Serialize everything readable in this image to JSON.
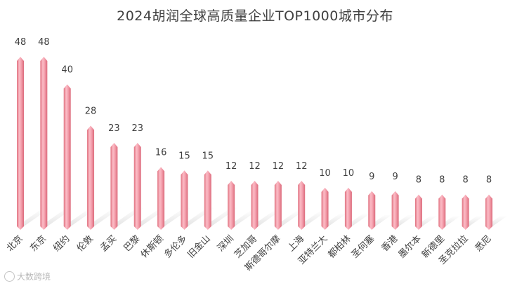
{
  "chart_data": {
    "type": "bar",
    "title": "2024胡润全球高质量企业TOP1000城市分布",
    "xlabel": "",
    "ylabel": "",
    "ylim": [
      0,
      48
    ],
    "grid": false,
    "legend": "none",
    "categories": [
      "北京",
      "东京",
      "纽约",
      "伦敦",
      "孟买",
      "巴黎",
      "休斯顿",
      "多伦多",
      "旧金山",
      "深圳",
      "芝加哥",
      "斯德哥尔摩",
      "上海",
      "亚特兰大",
      "都柏林",
      "圣何塞",
      "香港",
      "墨尔本",
      "新德里",
      "圣克拉拉",
      "悉尼"
    ],
    "values": [
      48,
      48,
      40,
      28,
      23,
      23,
      16,
      15,
      15,
      12,
      12,
      12,
      12,
      10,
      10,
      9,
      9,
      8,
      8,
      8,
      8
    ],
    "bar_color": "#f5a3b0",
    "bar_color_dark": "#e2788a"
  },
  "watermark": {
    "text": "大数跨境",
    "icon": "logo-icon"
  }
}
